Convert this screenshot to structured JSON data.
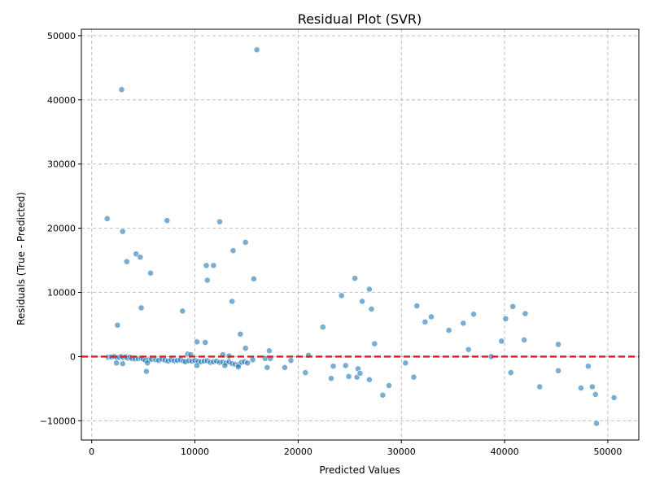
{
  "chart_data": {
    "type": "scatter",
    "title": "Residual Plot (SVR)",
    "xlabel": "Predicted Values",
    "ylabel": "Residuals (True - Predicted)",
    "xlim": [
      -1000,
      53000
    ],
    "ylim": [
      -13000,
      51000
    ],
    "xticks": [
      0,
      10000,
      20000,
      30000,
      40000,
      50000
    ],
    "yticks": [
      -10000,
      0,
      10000,
      20000,
      30000,
      40000,
      50000
    ],
    "grid": true,
    "reference_line": {
      "y": 0,
      "color": "#e31a1c",
      "style": "dashed"
    },
    "point_color": "#1f77b4",
    "points": [
      [
        2900,
        41600
      ],
      [
        16000,
        47800
      ],
      [
        1500,
        21500
      ],
      [
        3000,
        19500
      ],
      [
        7300,
        21200
      ],
      [
        12400,
        21000
      ],
      [
        4300,
        16000
      ],
      [
        4700,
        15500
      ],
      [
        3400,
        14800
      ],
      [
        5700,
        13000
      ],
      [
        13700,
        16500
      ],
      [
        14900,
        17800
      ],
      [
        11100,
        14200
      ],
      [
        11800,
        14200
      ],
      [
        11200,
        11900
      ],
      [
        15700,
        12100
      ],
      [
        4800,
        7600
      ],
      [
        8800,
        7100
      ],
      [
        13600,
        8600
      ],
      [
        2500,
        4900
      ],
      [
        14400,
        3500
      ],
      [
        10200,
        2300
      ],
      [
        11000,
        2200
      ],
      [
        14900,
        1300
      ],
      [
        17200,
        900
      ],
      [
        9300,
        400
      ],
      [
        9600,
        300
      ],
      [
        12700,
        300
      ],
      [
        13300,
        100
      ],
      [
        1600,
        -100
      ],
      [
        1900,
        -50
      ],
      [
        2200,
        0
      ],
      [
        2500,
        -200
      ],
      [
        2700,
        -100
      ],
      [
        2900,
        0
      ],
      [
        3100,
        -150
      ],
      [
        3300,
        -50
      ],
      [
        3500,
        -250
      ],
      [
        3700,
        -100
      ],
      [
        3900,
        -300
      ],
      [
        4200,
        -350
      ],
      [
        4500,
        -300
      ],
      [
        4800,
        -250
      ],
      [
        5000,
        -400
      ],
      [
        5200,
        -600
      ],
      [
        5500,
        -500
      ],
      [
        5800,
        -450
      ],
      [
        6200,
        -500
      ],
      [
        6500,
        -600
      ],
      [
        6800,
        -400
      ],
      [
        7100,
        -550
      ],
      [
        7400,
        -700
      ],
      [
        7700,
        -500
      ],
      [
        8000,
        -650
      ],
      [
        8300,
        -600
      ],
      [
        8600,
        -500
      ],
      [
        8900,
        -700
      ],
      [
        9100,
        -800
      ],
      [
        9400,
        -650
      ],
      [
        9700,
        -700
      ],
      [
        10000,
        -600
      ],
      [
        10300,
        -750
      ],
      [
        10600,
        -800
      ],
      [
        10900,
        -700
      ],
      [
        11200,
        -650
      ],
      [
        11500,
        -900
      ],
      [
        11800,
        -800
      ],
      [
        12100,
        -700
      ],
      [
        12400,
        -900
      ],
      [
        12700,
        -850
      ],
      [
        13000,
        -1000
      ],
      [
        13300,
        -800
      ],
      [
        13600,
        -1100
      ],
      [
        13900,
        -1200
      ],
      [
        14200,
        -1300
      ],
      [
        14500,
        -900
      ],
      [
        14800,
        -800
      ],
      [
        15100,
        -1000
      ],
      [
        15600,
        -500
      ],
      [
        2400,
        -1000
      ],
      [
        3000,
        -1100
      ],
      [
        5300,
        -2300
      ],
      [
        5400,
        -1000
      ],
      [
        10200,
        -1400
      ],
      [
        12900,
        -1400
      ],
      [
        14200,
        -1600
      ],
      [
        16800,
        -300
      ],
      [
        17300,
        -300
      ],
      [
        17000,
        -1700
      ],
      [
        18700,
        -1700
      ],
      [
        19300,
        -600
      ],
      [
        20700,
        -2500
      ],
      [
        21000,
        200
      ],
      [
        22400,
        4600
      ],
      [
        23200,
        -3400
      ],
      [
        23400,
        -1500
      ],
      [
        24200,
        9500
      ],
      [
        24600,
        -1400
      ],
      [
        24900,
        -3100
      ],
      [
        25500,
        12200
      ],
      [
        25700,
        -3200
      ],
      [
        25800,
        -1900
      ],
      [
        26000,
        -2600
      ],
      [
        26200,
        8600
      ],
      [
        26900,
        10500
      ],
      [
        26900,
        -3600
      ],
      [
        27100,
        7400
      ],
      [
        27400,
        2000
      ],
      [
        28200,
        -6000
      ],
      [
        28800,
        -4500
      ],
      [
        30400,
        -1000
      ],
      [
        31200,
        -3200
      ],
      [
        31500,
        7900
      ],
      [
        32300,
        5400
      ],
      [
        32900,
        6200
      ],
      [
        34600,
        4100
      ],
      [
        36000,
        5200
      ],
      [
        36500,
        1100
      ],
      [
        37000,
        6600
      ],
      [
        38700,
        0
      ],
      [
        39700,
        2400
      ],
      [
        40100,
        5900
      ],
      [
        40600,
        -2500
      ],
      [
        40800,
        7800
      ],
      [
        41900,
        2600
      ],
      [
        42000,
        6700
      ],
      [
        43400,
        -4700
      ],
      [
        45200,
        1900
      ],
      [
        45200,
        -2200
      ],
      [
        47400,
        -4900
      ],
      [
        48100,
        -1500
      ],
      [
        48500,
        -4700
      ],
      [
        48800,
        -5900
      ],
      [
        48900,
        -10400
      ],
      [
        50600,
        -6400
      ]
    ]
  }
}
